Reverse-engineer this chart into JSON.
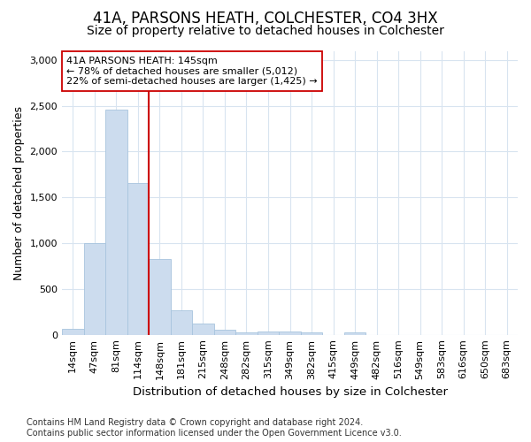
{
  "title": "41A, PARSONS HEATH, COLCHESTER, CO4 3HX",
  "subtitle": "Size of property relative to detached houses in Colchester",
  "xlabel": "Distribution of detached houses by size in Colchester",
  "ylabel": "Number of detached properties",
  "categories": [
    "14sqm",
    "47sqm",
    "81sqm",
    "114sqm",
    "148sqm",
    "181sqm",
    "215sqm",
    "248sqm",
    "282sqm",
    "315sqm",
    "349sqm",
    "382sqm",
    "415sqm",
    "449sqm",
    "482sqm",
    "516sqm",
    "549sqm",
    "583sqm",
    "616sqm",
    "650sqm",
    "683sqm"
  ],
  "values": [
    60,
    1000,
    2460,
    1660,
    825,
    270,
    125,
    55,
    30,
    35,
    35,
    25,
    0,
    30,
    0,
    0,
    0,
    0,
    0,
    0,
    0
  ],
  "bar_color": "#ccdcee",
  "bar_edge_color": "#a8c4de",
  "vline_x_index": 3.5,
  "vline_color": "#cc0000",
  "annotation_text": "41A PARSONS HEATH: 145sqm\n← 78% of detached houses are smaller (5,012)\n22% of semi-detached houses are larger (1,425) →",
  "annotation_box_color": "white",
  "annotation_box_edge_color": "#cc0000",
  "footnote": "Contains HM Land Registry data © Crown copyright and database right 2024.\nContains public sector information licensed under the Open Government Licence v3.0.",
  "ylim": [
    0,
    3100
  ],
  "yticks": [
    0,
    500,
    1000,
    1500,
    2000,
    2500,
    3000
  ],
  "title_fontsize": 12,
  "subtitle_fontsize": 10,
  "xlabel_fontsize": 9.5,
  "ylabel_fontsize": 9,
  "tick_fontsize": 8,
  "annotation_fontsize": 8,
  "footnote_fontsize": 7,
  "bg_color": "#ffffff",
  "grid_color": "#d8e4f0"
}
